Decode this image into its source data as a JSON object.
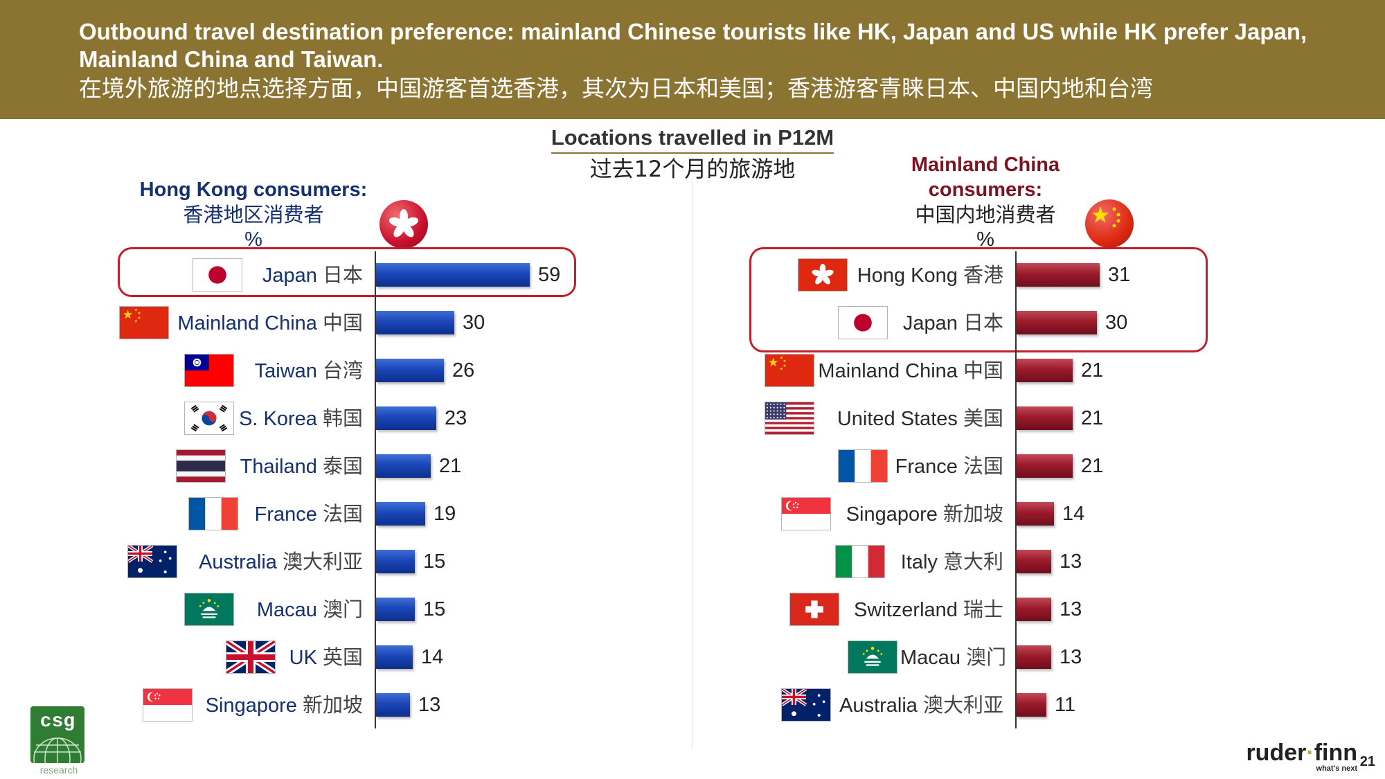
{
  "header": {
    "title_en": "Outbound travel destination preference: mainland Chinese tourists like HK, Japan and US while HK prefer Japan, Mainland China and Taiwan.",
    "title_zh": "在境外旅游的地点选择方面，中国游客首选香港，其次为日本和美国；香港游客青睐日本、中国内地和台湾"
  },
  "center_title": {
    "en": "Locations travelled in P12M",
    "zh": "过去12个月的旅游地"
  },
  "chart_data": [
    {
      "type": "bar",
      "orientation": "horizontal",
      "panel": "hk",
      "title_en": "Hong Kong consumers:",
      "title_zh": "香港地区消费者",
      "unit": "%",
      "bar_color": "#1a46b8",
      "xlim": [
        0,
        60
      ],
      "highlighted": [
        "Japan"
      ],
      "categories": [
        {
          "en": "Japan",
          "zh": "日本",
          "flag": "jp"
        },
        {
          "en": "Mainland China",
          "zh": "中国",
          "flag": "cn"
        },
        {
          "en": "Taiwan",
          "zh": "台湾",
          "flag": "tw"
        },
        {
          "en": "S. Korea",
          "zh": "韩国",
          "flag": "kr"
        },
        {
          "en": "Thailand",
          "zh": "泰国",
          "flag": "th"
        },
        {
          "en": "France",
          "zh": "法国",
          "flag": "fr"
        },
        {
          "en": "Australia",
          "zh": "澳大利亚",
          "flag": "au"
        },
        {
          "en": "Macau",
          "zh": "澳门",
          "flag": "mo"
        },
        {
          "en": "UK",
          "zh": "英国",
          "flag": "uk"
        },
        {
          "en": "Singapore",
          "zh": "新加坡",
          "flag": "sg"
        }
      ],
      "values": [
        59,
        30,
        26,
        23,
        21,
        19,
        15,
        15,
        14,
        13
      ]
    },
    {
      "type": "bar",
      "orientation": "horizontal",
      "panel": "cn",
      "title_en": "Mainland China consumers:",
      "title_zh": "中国内地消费者",
      "unit": "%",
      "bar_color": "#9b1a2b",
      "xlim": [
        0,
        60
      ],
      "highlighted": [
        "Hong Kong",
        "Japan"
      ],
      "categories": [
        {
          "en": "Hong Kong",
          "zh": "香港",
          "flag": "hk"
        },
        {
          "en": "Japan",
          "zh": "日本",
          "flag": "jp"
        },
        {
          "en": "Mainland China",
          "zh": "中国",
          "flag": "cn"
        },
        {
          "en": "United States",
          "zh": "美国",
          "flag": "us"
        },
        {
          "en": "France",
          "zh": "法国",
          "flag": "fr"
        },
        {
          "en": "Singapore",
          "zh": "新加坡",
          "flag": "sg"
        },
        {
          "en": "Italy",
          "zh": "意大利",
          "flag": "it"
        },
        {
          "en": "Switzerland",
          "zh": "瑞士",
          "flag": "ch"
        },
        {
          "en": "Macau",
          "zh": "澳门",
          "flag": "mo"
        },
        {
          "en": "Australia",
          "zh": "澳大利亚",
          "flag": "au"
        }
      ],
      "values": [
        31,
        30,
        21,
        21,
        21,
        14,
        13,
        13,
        13,
        11
      ]
    }
  ],
  "logos": {
    "left_brand": "csg",
    "left_sub": "research",
    "right_brand_a": "ruder",
    "right_brand_dot": "·",
    "right_brand_b": "finn",
    "right_tagline": "what's next",
    "page_number": "21"
  }
}
